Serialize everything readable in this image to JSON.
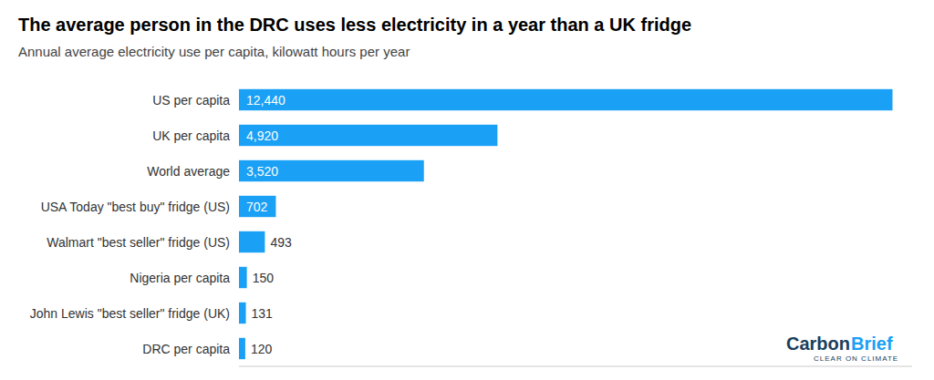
{
  "chart_data": {
    "type": "bar",
    "orientation": "horizontal",
    "title": "The average person in the DRC uses less electricity in a year than a UK fridge",
    "subtitle": "Annual average electricity use per capita, kilowatt hours per year",
    "categories": [
      "US per capita",
      "UK per capita",
      "World average",
      "USA Today \"best buy\" fridge (US)",
      "Walmart \"best seller\" fridge (US)",
      "Nigeria per capita",
      "John Lewis \"best seller\" fridge (UK)",
      "DRC per capita"
    ],
    "values": [
      12440,
      4920,
      3520,
      702,
      493,
      150,
      131,
      120
    ],
    "value_labels": [
      "12,440",
      "4,920",
      "3,520",
      "702",
      "493",
      "150",
      "131",
      "120"
    ],
    "data_labels": true,
    "color": "#1aa0f5",
    "xlim": [
      0,
      12813.2
    ],
    "grid": false,
    "tick_labels": "y",
    "annotations": [
      {
        "text": "Carbon",
        "color": "#1a3e5c"
      },
      {
        "text": "Brief",
        "color": "#1aa0f5"
      },
      {
        "text": "CLEAR ON CLIMATE",
        "color": "#1a3e5c"
      }
    ]
  }
}
